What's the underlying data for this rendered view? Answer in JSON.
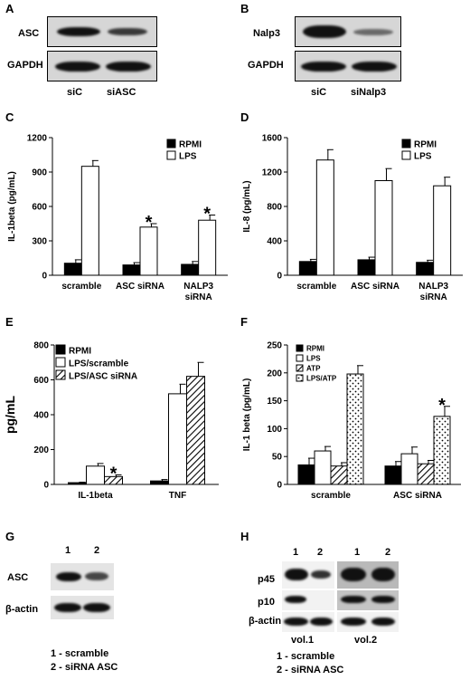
{
  "figure_panels": {
    "A": {
      "letter": "A",
      "rows": [
        "ASC",
        "GAPDH"
      ],
      "lanes": [
        "siC",
        "siASC"
      ]
    },
    "B": {
      "letter": "B",
      "rows": [
        "Nalp3",
        "GAPDH"
      ],
      "lanes": [
        "siC",
        "siNalp3"
      ]
    },
    "C": {
      "letter": "C"
    },
    "D": {
      "letter": "D"
    },
    "E": {
      "letter": "E"
    },
    "F": {
      "letter": "F"
    },
    "G": {
      "letter": "G",
      "lane_numbers": [
        "1",
        "2"
      ],
      "rows": [
        "ASC",
        "β-actin"
      ],
      "legend": [
        "1 - scramble",
        "2 - siRNA ASC"
      ]
    },
    "H": {
      "letter": "H",
      "lane_numbers": [
        "1",
        "2",
        "1",
        "2"
      ],
      "rows": [
        "p45",
        "p10",
        "β-actin"
      ],
      "volumes": [
        "vol.1",
        "vol.2"
      ],
      "legend": [
        "1 - scramble",
        "2 - siRNA ASC"
      ]
    }
  },
  "chart_data": [
    {
      "id": "C",
      "type": "bar",
      "ylabel": "IL-1beta (pg/mL)",
      "ylim": [
        0,
        1200
      ],
      "yticks": [
        0,
        300,
        600,
        900,
        1200
      ],
      "categories": [
        "scramble",
        "ASC siRNA",
        "NALP3 siRNA"
      ],
      "series": [
        {
          "name": "RPMI",
          "fill": "#000000",
          "values": [
            105,
            90,
            95
          ],
          "errors": [
            30,
            20,
            25
          ]
        },
        {
          "name": "LPS",
          "fill": "#ffffff",
          "values": [
            950,
            420,
            480
          ],
          "errors": [
            50,
            30,
            45
          ]
        }
      ],
      "significance": [
        [
          1,
          1
        ],
        [
          2,
          1
        ]
      ],
      "legend_position": "top-right"
    },
    {
      "id": "D",
      "type": "bar",
      "ylabel": "IL-8 (pg/mL)",
      "ylim": [
        0,
        1600
      ],
      "yticks": [
        0,
        400,
        800,
        1200,
        1600
      ],
      "categories": [
        "scramble",
        "ASC siRNA",
        "NALP3 siRNA"
      ],
      "series": [
        {
          "name": "RPMI",
          "fill": "#000000",
          "values": [
            160,
            180,
            150
          ],
          "errors": [
            25,
            30,
            25
          ]
        },
        {
          "name": "LPS",
          "fill": "#ffffff",
          "values": [
            1340,
            1100,
            1040
          ],
          "errors": [
            120,
            140,
            100
          ]
        }
      ],
      "significance": [],
      "legend_position": "top-right"
    },
    {
      "id": "E",
      "type": "bar",
      "ylabel": "pg/mL",
      "ylim": [
        0,
        800
      ],
      "yticks": [
        0,
        200,
        400,
        600,
        800
      ],
      "categories": [
        "IL-1beta",
        "TNF"
      ],
      "series": [
        {
          "name": "RPMI",
          "fill": "#000000",
          "values": [
            10,
            20
          ],
          "errors": [
            3,
            8
          ]
        },
        {
          "name": "LPS/scramble",
          "fill": "#ffffff",
          "values": [
            105,
            520
          ],
          "errors": [
            15,
            55
          ]
        },
        {
          "name": "LPS/ASC siRNA",
          "fill": "hatch",
          "values": [
            45,
            620
          ],
          "errors": [
            10,
            80
          ]
        }
      ],
      "significance": [
        [
          0,
          2
        ]
      ],
      "legend_position": "top-left"
    },
    {
      "id": "F",
      "type": "bar",
      "ylabel": "IL-1 beta (pg/mL)",
      "ylim": [
        0,
        250
      ],
      "yticks": [
        0,
        50,
        100,
        150,
        200,
        250
      ],
      "categories": [
        "scramble",
        "ASC siRNA"
      ],
      "series": [
        {
          "name": "RPMI",
          "fill": "#000000",
          "values": [
            35,
            33
          ],
          "errors": [
            12,
            8
          ]
        },
        {
          "name": "LPS",
          "fill": "#ffffff",
          "values": [
            60,
            55
          ],
          "errors": [
            8,
            12
          ]
        },
        {
          "name": "ATP",
          "fill": "hatch",
          "values": [
            33,
            37
          ],
          "errors": [
            6,
            6
          ]
        },
        {
          "name": "LPS/ATP",
          "fill": "dots",
          "values": [
            198,
            122
          ],
          "errors": [
            15,
            18
          ]
        }
      ],
      "significance": [
        [
          1,
          3
        ]
      ],
      "legend_position": "top-left"
    }
  ]
}
